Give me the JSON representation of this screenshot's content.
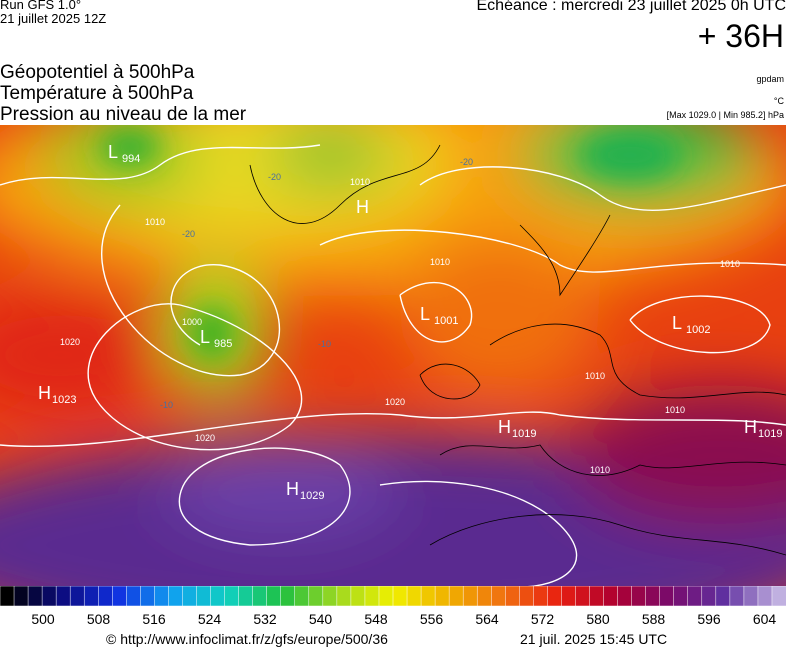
{
  "header": {
    "run": "Run GFS 1.0°",
    "run_date": "21 juillet 2025 12Z",
    "echeance": "Echéance : mercredi 23 juillet 2025 0h UTC",
    "lead": "+ 36H"
  },
  "fields": [
    "Géopotentiel à 500hPa",
    "Température à 500hPa",
    "Pression au niveau de la mer"
  ],
  "units": [
    "gpdam",
    "°C",
    "[Max 1029.0 | Min 985.2] hPa"
  ],
  "centers": [
    {
      "letter": "L",
      "value": "994"
    },
    {
      "letter": "H"
    },
    {
      "letter": "L",
      "value": "985"
    },
    {
      "letter": "L",
      "value": "1001"
    },
    {
      "letter": "L",
      "value": "1002"
    },
    {
      "letter": "H",
      "value": "1023"
    },
    {
      "letter": "H",
      "value": "1029"
    },
    {
      "letter": "H",
      "value": "1019"
    },
    {
      "letter": "H",
      "value": "1019"
    }
  ],
  "isobar_labels": [
    "1010",
    "1020",
    "1010",
    "1000",
    "1010",
    "1020",
    "1010",
    "1010",
    "1010",
    "1010",
    "1020"
  ],
  "temp_labels": [
    "-20",
    "-20",
    "-20",
    "-10",
    "-10"
  ],
  "colorbar": {
    "labels": [
      "500",
      "508",
      "516",
      "524",
      "532",
      "540",
      "548",
      "556",
      "564",
      "572",
      "580",
      "588",
      "596",
      "604"
    ],
    "colors": [
      "#000000",
      "#0c0c80",
      "#1030e0",
      "#10a0f0",
      "#10d0c0",
      "#20c040",
      "#a0d820",
      "#f0f000",
      "#f0b000",
      "#f07010",
      "#e82010",
      "#b00030",
      "#7a0a6a",
      "#6030a0",
      "#c0b0e0"
    ]
  },
  "footer": {
    "url": "© http://www.infoclimat.fr/z/gfs/europe/500/36",
    "date": "21 juil. 2025 15:45 UTC"
  }
}
